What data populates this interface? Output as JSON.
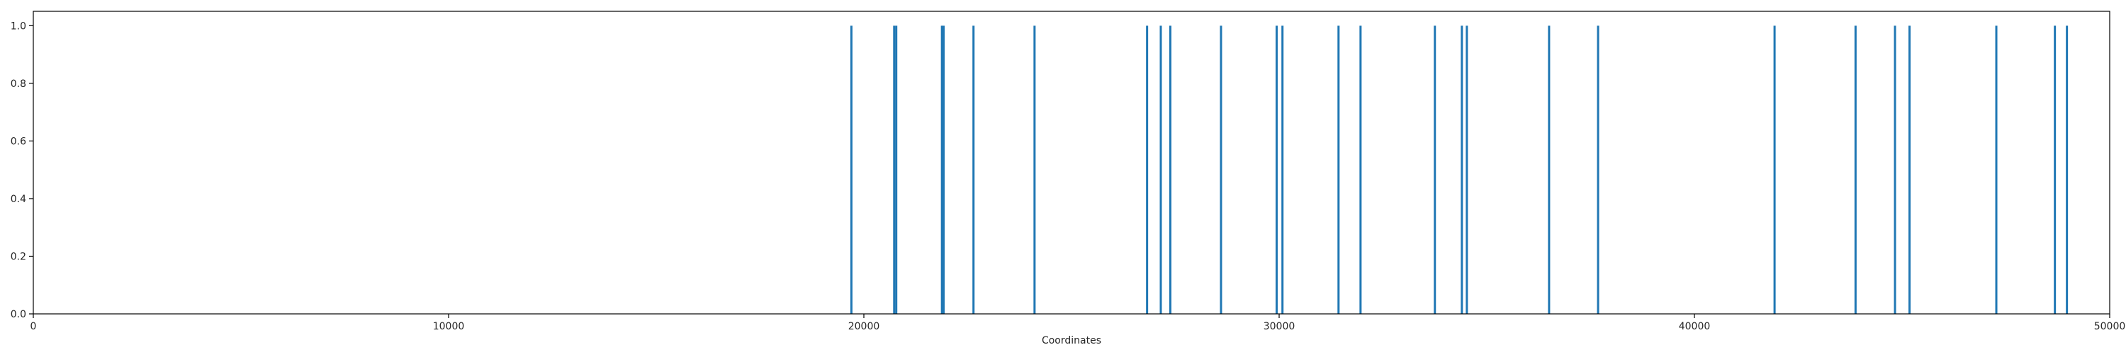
{
  "chart_data": {
    "type": "bar",
    "title": "",
    "xlabel": "Coordinates",
    "ylabel": "",
    "xlim": [
      0,
      50000
    ],
    "ylim": [
      0,
      1.05
    ],
    "grid": false,
    "legend": "none",
    "x_ticks": [
      0,
      10000,
      20000,
      30000,
      40000,
      50000
    ],
    "x_tick_labels": [
      "0",
      "10000",
      "20000",
      "30000",
      "40000",
      "50000"
    ],
    "y_ticks": [
      0.0,
      0.2,
      0.4,
      0.6,
      0.8,
      1.0
    ],
    "y_tick_labels": [
      "0.0",
      "0.2",
      "0.4",
      "0.6",
      "0.8",
      "1.0"
    ],
    "bar_color": "#1f77b4",
    "axis_color": "#000000",
    "series": [
      {
        "x": [
          19700,
          20730,
          20780,
          21880,
          21920,
          22640,
          24110,
          26820,
          27150,
          27380,
          28600,
          29940,
          30080,
          31430,
          31960,
          33750,
          34400,
          34520,
          36500,
          37680,
          41930,
          43880,
          44830,
          45180,
          47270,
          48680,
          48970
        ],
        "values": [
          1,
          1,
          1,
          1,
          1,
          1,
          1,
          1,
          1,
          1,
          1,
          1,
          1,
          1,
          1,
          1,
          1,
          1,
          1,
          1,
          1,
          1,
          1,
          1,
          1,
          1,
          1
        ]
      }
    ]
  }
}
